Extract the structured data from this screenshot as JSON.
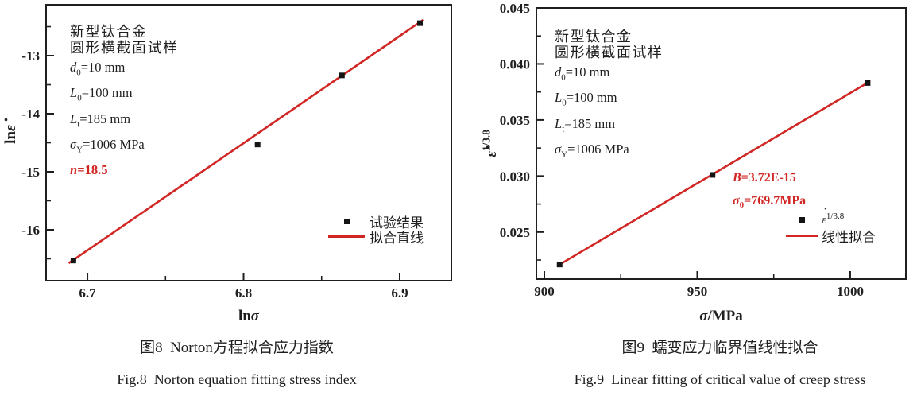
{
  "figure": {
    "background": "#ffffff",
    "ink": "#1f1f1f",
    "accent_red": "#d12623",
    "marker_color": "#141414"
  },
  "charts": [
    {
      "name": "fig8",
      "annotation": {
        "alloy_line1": "新型钛合金",
        "alloy_line2": "圆形横截面试样",
        "params": [
          {
            "sym": "d",
            "sub": "0",
            "rest": "=10 mm"
          },
          {
            "sym": "L",
            "sub": "0",
            "rest": "=100 mm"
          },
          {
            "sym": "L",
            "sub": "t",
            "rest": "=185 mm"
          },
          {
            "sym": "σ",
            "sub": "Y",
            "rest": "=1006 MPa"
          }
        ],
        "highlight": {
          "sym": "n",
          "rest": "=18.5"
        }
      },
      "legend": [
        {
          "swatch": "square",
          "label": "试验结果"
        },
        {
          "swatch": "line",
          "label": "拟合直线"
        }
      ],
      "caption_cn": "图8  Norton方程拟合应力指数",
      "caption_en": "Fig.8  Norton equation fitting stress index",
      "chart_data": {
        "type": "scatter",
        "xlabel": "lnσ",
        "ylabel": "lnε̇",
        "xlabel_parts": [
          {
            "t": "ln"
          },
          {
            "t": "σ",
            "i": 1
          }
        ],
        "ylabel_parts": [
          {
            "t": "ln"
          },
          {
            "t": "ε",
            "i": 1,
            "dot": 1
          }
        ],
        "xlim": [
          6.6735,
          6.9331
        ],
        "ylim": [
          -16.877,
          -12.123
        ],
        "xticks": [
          {
            "v": 6.7,
            "label": "6.7"
          },
          {
            "v": 6.8,
            "label": "6.8"
          },
          {
            "v": 6.9,
            "label": "6.9"
          }
        ],
        "xminor": [
          6.75,
          6.85
        ],
        "yticks": [
          {
            "v": -16,
            "label": "-16"
          },
          {
            "v": -15,
            "label": "-15"
          },
          {
            "v": -14,
            "label": "-14"
          },
          {
            "v": -13,
            "label": "-13"
          }
        ],
        "yminor": [
          -16.5,
          -15.5,
          -14.5,
          -13.5,
          -12.5
        ],
        "points": [
          [
            6.691,
            -16.53
          ],
          [
            6.809,
            -14.53
          ],
          [
            6.863,
            -13.34
          ],
          [
            6.913,
            -12.44
          ]
        ],
        "fit_line": [
          [
            6.688,
            -16.575
          ],
          [
            6.915,
            -12.384
          ]
        ],
        "fit_slope_label": "n=18.5"
      }
    },
    {
      "name": "fig9",
      "annotation": {
        "alloy_line1": "新型钛合金",
        "alloy_line2": "圆形横截面试样",
        "params": [
          {
            "sym": "d",
            "sub": "0",
            "rest": "=10 mm"
          },
          {
            "sym": "L",
            "sub": "0",
            "rest": "=100 mm"
          },
          {
            "sym": "L",
            "sub": "t",
            "rest": "=185 mm"
          },
          {
            "sym": "σ",
            "sub": "Y",
            "rest": "=1006 MPa"
          }
        ]
      },
      "fit_text": [
        {
          "sym": "B",
          "rest": "=3.72E-15"
        },
        {
          "sym": "σ",
          "sub": "0",
          "rest": "=769.7MPa"
        }
      ],
      "legend": [
        {
          "swatch": "square",
          "label_base": "ε",
          "label_sup": "1/3.8"
        },
        {
          "swatch": "line",
          "label": "线性拟合"
        }
      ],
      "caption_cn": "图9  蠕变应力临界值线性拟合",
      "caption_en": "Fig.9  Linear fitting of critical value of creep stress",
      "chart_data": {
        "type": "scatter",
        "xlabel": "σ/MPa",
        "ylabel": "ε̇^(1/3.8)",
        "xlabel_parts": [
          {
            "t": "σ",
            "i": 1
          },
          {
            "t": "/MPa"
          }
        ],
        "ylabel_parts": [
          {
            "t": "ε",
            "i": 1,
            "dot": 1
          },
          {
            "t": "1/3.8",
            "sup": 1
          }
        ],
        "xlim": [
          897.4,
          1018.2
        ],
        "ylim": [
          0.0208,
          0.045
        ],
        "xticks": [
          {
            "v": 900,
            "label": "900"
          },
          {
            "v": 950,
            "label": "950"
          },
          {
            "v": 1000,
            "label": "1000"
          }
        ],
        "xminor": [
          925,
          975
        ],
        "yticks": [
          {
            "v": 0.025,
            "label": "0.025"
          },
          {
            "v": 0.03,
            "label": "0.030"
          },
          {
            "v": 0.035,
            "label": "0.035"
          },
          {
            "v": 0.04,
            "label": "0.040"
          },
          {
            "v": 0.045,
            "label": "0.045"
          }
        ],
        "yminor": [
          0.0225,
          0.0275,
          0.0325,
          0.0375,
          0.0425
        ],
        "points": [
          [
            905,
            0.0221
          ],
          [
            955,
            0.0301
          ],
          [
            1005.7,
            0.0383
          ]
        ],
        "fit_line": [
          [
            904.5,
            0.02202
          ],
          [
            1006.3,
            0.03842
          ]
        ]
      }
    }
  ]
}
